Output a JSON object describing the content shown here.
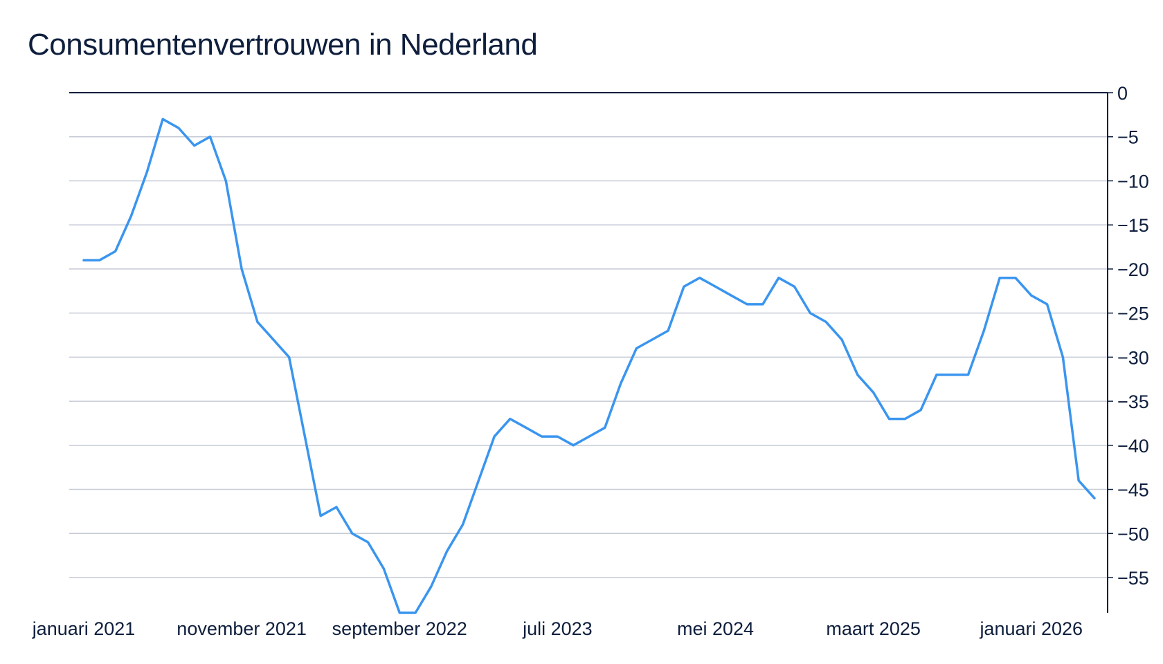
{
  "chart_data": {
    "type": "line",
    "title": "Consumentenvertrouwen in Nederland",
    "xlabel": "",
    "ylabel": "",
    "ylim": [
      -59,
      0
    ],
    "y_ticks": [
      0,
      -5,
      -10,
      -15,
      -20,
      -25,
      -30,
      -35,
      -40,
      -45,
      -50,
      -55
    ],
    "y_axis_side": "right",
    "grid": "horizontal",
    "legend": "none",
    "x_tick_labels": [
      {
        "label": "januari 2021",
        "date": "2021-01"
      },
      {
        "label": "november 2021",
        "date": "2021-11"
      },
      {
        "label": "september 2022",
        "date": "2022-09"
      },
      {
        "label": "juli 2023",
        "date": "2023-07"
      },
      {
        "label": "mei 2024",
        "date": "2024-05"
      },
      {
        "label": "maart 2025",
        "date": "2025-03"
      },
      {
        "label": "januari 2026",
        "date": "2026-01"
      }
    ],
    "colors": {
      "line": "#3a95ef",
      "grid": "#c5cad6",
      "axis": "#0e1e3c",
      "text": "#0e1e3c"
    },
    "series": [
      {
        "x": [
          "2021-01",
          "2021-02",
          "2021-03",
          "2021-04",
          "2021-05",
          "2021-06",
          "2021-07",
          "2021-08",
          "2021-09",
          "2021-10",
          "2021-11",
          "2021-12",
          "2022-01",
          "2022-02",
          "2022-03",
          "2022-04",
          "2022-05",
          "2022-06",
          "2022-07",
          "2022-08",
          "2022-09",
          "2022-10",
          "2022-11",
          "2022-12",
          "2023-01",
          "2023-02",
          "2023-03",
          "2023-04",
          "2023-05",
          "2023-06",
          "2023-07",
          "2023-08",
          "2023-09",
          "2023-10",
          "2023-11",
          "2023-12",
          "2024-01",
          "2024-02",
          "2024-03",
          "2024-04",
          "2024-05",
          "2024-06",
          "2024-07",
          "2024-08",
          "2024-09",
          "2024-10",
          "2024-11",
          "2024-12",
          "2025-01",
          "2025-02",
          "2025-03",
          "2025-04",
          "2025-05",
          "2025-06",
          "2025-07",
          "2025-08",
          "2025-09",
          "2025-10",
          "2025-11",
          "2025-12",
          "2026-01",
          "2026-02",
          "2026-03",
          "2026-04",
          "2026-05"
        ],
        "values": [
          -19,
          -19,
          -18,
          -14,
          -9,
          -3,
          -4,
          -6,
          -5,
          -10,
          -20,
          -26,
          -28,
          -30,
          -39,
          -48,
          -47,
          -50,
          -51,
          -54,
          -59,
          -59,
          -56,
          -52,
          -49,
          -44,
          -39,
          -37,
          -38,
          -39,
          -39,
          -40,
          -39,
          -38,
          -33,
          -29,
          -28,
          -27,
          -22,
          -21,
          -22,
          -23,
          -24,
          -24,
          -21,
          -22,
          -25,
          -26,
          -28,
          -32,
          -34,
          -37,
          -37,
          -36,
          -32,
          -32,
          -32,
          -27,
          -21,
          -21,
          -23,
          -24,
          -30,
          -44,
          -46
        ]
      }
    ]
  }
}
